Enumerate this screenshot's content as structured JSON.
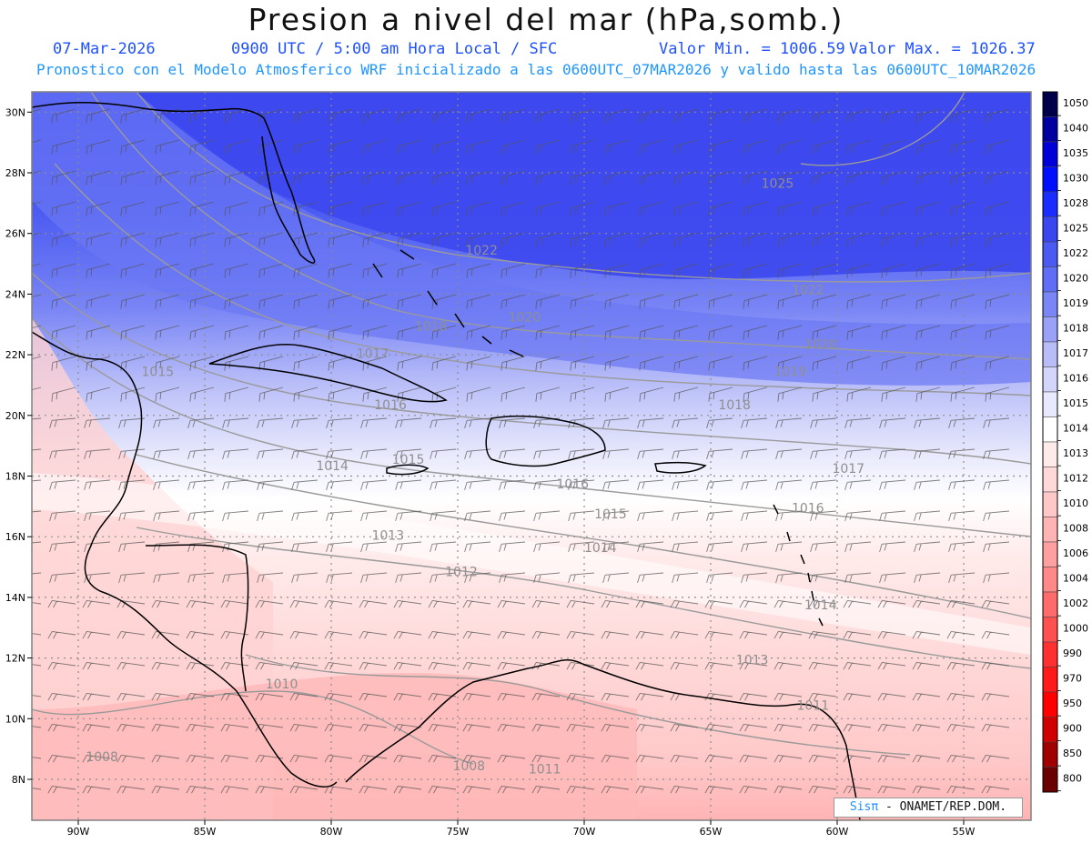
{
  "header": {
    "title": "Presion a nivel del mar (hPa,somb.)",
    "date": "07-Mar-2026",
    "time_info": "0900 UTC / 5:00 am Hora Local / SFC",
    "min_value": "Valor Min. = 1006.59",
    "max_value": "Valor Max. = 1026.37",
    "model_info": "Pronostico con el Modelo Atmosferico WRF inicializado a las 0600UTC_07MAR2026 y valido hasta las  0600UTC_10MAR2026"
  },
  "axes": {
    "lat_labels": [
      "30N",
      "28N",
      "26N",
      "24N",
      "22N",
      "20N",
      "18N",
      "16N",
      "14N",
      "12N",
      "10N",
      "8N"
    ],
    "lat_values": [
      30,
      28,
      26,
      24,
      22,
      20,
      18,
      16,
      14,
      12,
      10,
      8
    ],
    "lon_labels": [
      "90W",
      "85W",
      "80W",
      "75W",
      "70W",
      "65W",
      "60W",
      "55W"
    ],
    "lon_values": [
      -90,
      -85,
      -80,
      -75,
      -70,
      -65,
      -60,
      -55
    ]
  },
  "colorbar": {
    "levels": [
      "1050",
      "1040",
      "1035",
      "1030",
      "1028",
      "1025",
      "1022",
      "1020",
      "1019",
      "1018",
      "1017",
      "1016",
      "1015",
      "1014",
      "1013",
      "1012",
      "1010",
      "1008",
      "1006",
      "1004",
      "1002",
      "1000",
      "990",
      "970",
      "950",
      "900",
      "850",
      "800"
    ],
    "colors": [
      "#00004a",
      "#0000a0",
      "#0000d8",
      "#0010ff",
      "#1a2cff",
      "#3a46f0",
      "#4a5af2",
      "#5f6ef4",
      "#7a86f5",
      "#9aa2f7",
      "#b8bdf8",
      "#d3d6fa",
      "#e8e9fc",
      "#ffffff",
      "#ffeaea",
      "#ffd8d8",
      "#ffc8c8",
      "#ffb4b4",
      "#ffa0a0",
      "#ff8888",
      "#ff6a6a",
      "#ff5050",
      "#ff3030",
      "#ff1a1a",
      "#ff0000",
      "#d00000",
      "#a00000",
      "#6a0000"
    ]
  },
  "contour_labels": [
    {
      "text": "1025",
      "lon": -63.0,
      "lat": 27.5
    },
    {
      "text": "1022",
      "lon": -74.7,
      "lat": 25.3
    },
    {
      "text": "1022",
      "lon": -61.8,
      "lat": 24.0
    },
    {
      "text": "1020",
      "lon": -73.0,
      "lat": 23.1
    },
    {
      "text": "1020",
      "lon": -61.3,
      "lat": 22.2
    },
    {
      "text": "1018",
      "lon": -76.7,
      "lat": 22.8
    },
    {
      "text": "1017",
      "lon": -79.0,
      "lat": 21.9
    },
    {
      "text": "1019",
      "lon": -62.5,
      "lat": 21.3
    },
    {
      "text": "1018",
      "lon": -64.7,
      "lat": 20.2
    },
    {
      "text": "1016",
      "lon": -78.3,
      "lat": 20.2
    },
    {
      "text": "1015",
      "lon": -87.5,
      "lat": 21.3
    },
    {
      "text": "1015",
      "lon": -77.6,
      "lat": 18.4
    },
    {
      "text": "1014",
      "lon": -80.6,
      "lat": 18.2
    },
    {
      "text": "1016",
      "lon": -71.1,
      "lat": 17.6
    },
    {
      "text": "1017",
      "lon": -60.2,
      "lat": 18.1
    },
    {
      "text": "1016",
      "lon": -61.8,
      "lat": 16.8
    },
    {
      "text": "1015",
      "lon": -69.6,
      "lat": 16.6
    },
    {
      "text": "1014",
      "lon": -70.0,
      "lat": 15.5
    },
    {
      "text": "1013",
      "lon": -78.4,
      "lat": 15.9
    },
    {
      "text": "1012",
      "lon": -75.5,
      "lat": 14.7
    },
    {
      "text": "1014",
      "lon": -61.3,
      "lat": 13.6
    },
    {
      "text": "1013",
      "lon": -64.0,
      "lat": 11.8
    },
    {
      "text": "1010",
      "lon": -82.6,
      "lat": 11.0
    },
    {
      "text": "1008",
      "lon": -89.7,
      "lat": 8.6
    },
    {
      "text": "1008",
      "lon": -75.2,
      "lat": 8.3
    },
    {
      "text": "1011",
      "lon": -72.2,
      "lat": 8.2
    },
    {
      "text": "1011",
      "lon": -61.6,
      "lat": 10.3
    }
  ],
  "credit": {
    "brand": "Sisπ",
    "org": " - ONAMET/REP.DOM."
  }
}
